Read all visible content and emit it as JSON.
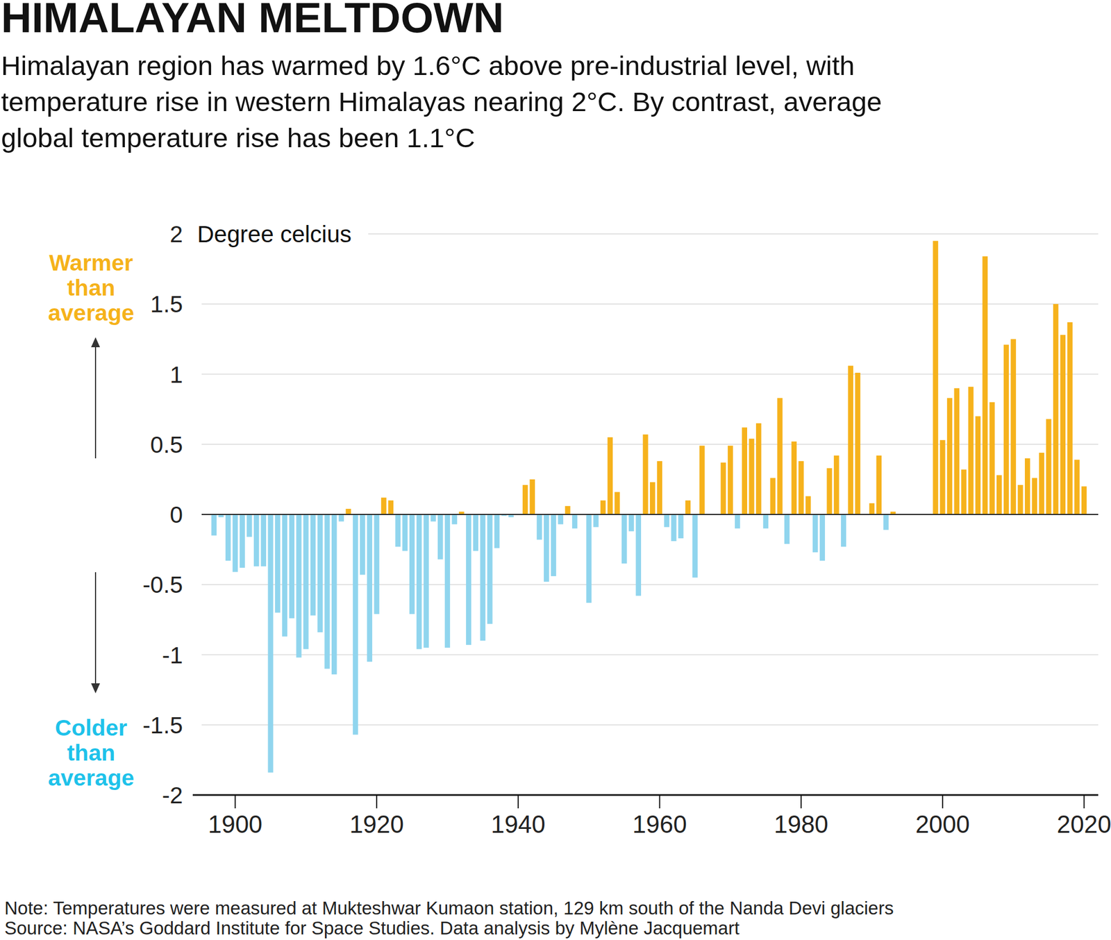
{
  "chart_data": {
    "type": "bar",
    "title": "HIMALAYAN MELTDOWN",
    "subtitle": [
      "Himalayan region has warmed by 1.6°C above pre-industrial level, with",
      "temperature rise in western Himalayas nearing 2°C. By contrast, average",
      "global temperature rise has been 1.1°C"
    ],
    "y_label": "Degree celcius",
    "annotations": [
      [
        "Warmer",
        "than",
        "average"
      ],
      [
        "Colder",
        "than",
        "average"
      ]
    ],
    "notes": [
      "Note: Temperatures were measured at Mukteshwar Kumaon station, 129 km south of the Nanda Devi glaciers",
      "Source: NASA’s Goddard Institute for Space Studies. Data analysis by Mylène Jacquemart"
    ],
    "x": [
      1897,
      1898,
      1899,
      1900,
      1901,
      1902,
      1903,
      1904,
      1905,
      1906,
      1907,
      1908,
      1909,
      1910,
      1911,
      1912,
      1913,
      1914,
      1915,
      1916,
      1917,
      1918,
      1919,
      1920,
      1921,
      1922,
      1923,
      1924,
      1925,
      1926,
      1927,
      1928,
      1929,
      1930,
      1931,
      1932,
      1933,
      1934,
      1935,
      1936,
      1937,
      1938,
      1939,
      1940,
      1941,
      1942,
      1943,
      1944,
      1945,
      1946,
      1947,
      1948,
      1949,
      1950,
      1951,
      1952,
      1953,
      1954,
      1955,
      1956,
      1957,
      1958,
      1959,
      1960,
      1961,
      1962,
      1963,
      1964,
      1965,
      1966,
      1967,
      1968,
      1969,
      1970,
      1971,
      1972,
      1973,
      1974,
      1975,
      1976,
      1977,
      1978,
      1979,
      1980,
      1981,
      1982,
      1983,
      1984,
      1985,
      1986,
      1987,
      1988,
      1989,
      1990,
      1991,
      1992,
      1993,
      1994,
      1995,
      1996,
      1997,
      1998,
      1999,
      2000,
      2001,
      2002,
      2003,
      2004,
      2005,
      2006,
      2007,
      2008,
      2009,
      2010,
      2011,
      2012,
      2013,
      2014,
      2015,
      2016,
      2017,
      2018,
      2019,
      2020
    ],
    "values": [
      -0.15,
      -0.02,
      -0.33,
      -0.41,
      -0.38,
      -0.16,
      -0.37,
      -0.37,
      -1.84,
      -0.7,
      -0.87,
      -0.74,
      -1.02,
      -0.96,
      -0.72,
      -0.84,
      -1.1,
      -1.14,
      -0.05,
      0.04,
      -1.57,
      -0.43,
      -1.05,
      -0.71,
      0.12,
      0.1,
      -0.23,
      -0.26,
      -0.71,
      -0.96,
      -0.95,
      -0.05,
      -0.32,
      -0.95,
      -0.07,
      0.02,
      -0.93,
      -0.26,
      -0.9,
      -0.78,
      -0.24,
      -0.01,
      -0.02,
      0,
      0.21,
      0.25,
      -0.18,
      -0.48,
      -0.44,
      -0.07,
      0.06,
      -0.1,
      0,
      -0.63,
      -0.09,
      0.1,
      0.55,
      0.16,
      -0.35,
      -0.12,
      -0.58,
      0.57,
      0.23,
      0.38,
      -0.09,
      -0.19,
      -0.17,
      0.1,
      -0.45,
      0.49,
      0,
      0,
      0.37,
      0.49,
      -0.1,
      0.62,
      0.54,
      0.65,
      -0.1,
      0.26,
      0.83,
      -0.21,
      0.52,
      0.38,
      0.13,
      -0.27,
      -0.33,
      0.33,
      0.42,
      -0.23,
      1.06,
      1.01,
      0,
      0.08,
      0.42,
      -0.11,
      0.02,
      null,
      null,
      null,
      null,
      null,
      1.95,
      0.53,
      0.83,
      0.9,
      0.32,
      0.91,
      0.7,
      1.84,
      0.8,
      0.28,
      1.21,
      1.25,
      0.21,
      0.4,
      0.26,
      0.44,
      0.68,
      1.5,
      1.28,
      1.37,
      0.39,
      0.2
    ],
    "colors": [
      "#90d5ee",
      "#90d5ee",
      "#90d5ee",
      "#90d5ee",
      "#90d5ee",
      "#90d5ee",
      "#90d5ee",
      "#90d5ee",
      "#90d5ee",
      "#90d5ee",
      "#90d5ee",
      "#90d5ee",
      "#90d5ee",
      "#90d5ee",
      "#90d5ee",
      "#90d5ee",
      "#90d5ee",
      "#90d5ee",
      "#90d5ee",
      "#f6b21c",
      "#90d5ee",
      "#90d5ee",
      "#90d5ee",
      "#90d5ee",
      "#f6b21c",
      "#f6b21c",
      "#90d5ee",
      "#90d5ee",
      "#90d5ee",
      "#90d5ee",
      "#90d5ee",
      "#90d5ee",
      "#90d5ee",
      "#90d5ee",
      "#90d5ee",
      "#f6b21c",
      "#90d5ee",
      "#90d5ee",
      "#90d5ee",
      "#90d5ee",
      "#90d5ee",
      "#90d5ee",
      "#90d5ee",
      "#f6b21c",
      "#f6b21c",
      "#f6b21c",
      "#90d5ee",
      "#90d5ee",
      "#90d5ee",
      "#90d5ee",
      "#f6b21c",
      "#90d5ee",
      "#f6b21c",
      "#90d5ee",
      "#90d5ee",
      "#f6b21c",
      "#f6b21c",
      "#f6b21c",
      "#90d5ee",
      "#90d5ee",
      "#90d5ee",
      "#f6b21c",
      "#f6b21c",
      "#f6b21c",
      "#90d5ee",
      "#90d5ee",
      "#90d5ee",
      "#f6b21c",
      "#90d5ee",
      "#f6b21c",
      "#f6b21c",
      "#f6b21c",
      "#f6b21c",
      "#f6b21c",
      "#90d5ee",
      "#f6b21c",
      "#f6b21c",
      "#f6b21c",
      "#90d5ee",
      "#f6b21c",
      "#f6b21c",
      "#90d5ee",
      "#f6b21c",
      "#f6b21c",
      "#f6b21c",
      "#90d5ee",
      "#90d5ee",
      "#f6b21c",
      "#f6b21c",
      "#90d5ee",
      "#f6b21c",
      "#f6b21c",
      "#f6b21c",
      "#f6b21c",
      "#f6b21c",
      "#90d5ee",
      "#f6b21c",
      "#f6b21c",
      "#f6b21c",
      "#f6b21c",
      "#f6b21c",
      "#f6b21c",
      "#f6b21c",
      "#f6b21c",
      "#f6b21c",
      "#f6b21c",
      "#f6b21c",
      "#f6b21c",
      "#f6b21c",
      "#f6b21c",
      "#f6b21c",
      "#f6b21c",
      "#f6b21c",
      "#f6b21c",
      "#f6b21c",
      "#f6b21c",
      "#f6b21c",
      "#f6b21c",
      "#f6b21c",
      "#f6b21c",
      "#f6b21c",
      "#f6b21c",
      "#f6b21c",
      "#f6b21c"
    ],
    "xlim": [
      1894,
      2022
    ],
    "xticks": [
      1900,
      1920,
      1940,
      1960,
      1980,
      2000,
      2020
    ],
    "ylim": [
      -2,
      2
    ],
    "yticks": [
      -2,
      -1.5,
      -1,
      -0.5,
      0,
      0.5,
      1,
      1.5,
      2
    ],
    "grid": true
  }
}
